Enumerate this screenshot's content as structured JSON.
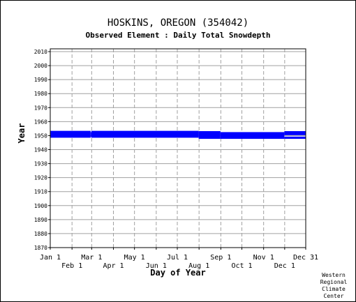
{
  "chart_data": {
    "type": "bar",
    "title": "HOSKINS, OREGON   (354042)",
    "subtitle": "Observed Element : Daily Total Snowdepth",
    "xlabel": "Day of Year",
    "ylabel": "Year",
    "credit": [
      "Western",
      "Regional",
      "Climate",
      "Center"
    ],
    "ylim": [
      1870,
      2012
    ],
    "yticks": [
      1870,
      1880,
      1890,
      1900,
      1910,
      1920,
      1930,
      1940,
      1950,
      1960,
      1970,
      1980,
      1990,
      2000,
      2010
    ],
    "xlim": [
      1,
      365
    ],
    "xticks_upper": [
      {
        "label": "Jan 1",
        "day": 1
      },
      {
        "label": "Mar 1",
        "day": 60
      },
      {
        "label": "May 1",
        "day": 121
      },
      {
        "label": "Jul 1",
        "day": 182
      },
      {
        "label": "Sep 1",
        "day": 244
      },
      {
        "label": "Nov 1",
        "day": 305
      },
      {
        "label": "Dec 31",
        "day": 365
      }
    ],
    "xticks_lower": [
      {
        "label": "Feb 1",
        "day": 32
      },
      {
        "label": "Apr 1",
        "day": 91
      },
      {
        "label": "Jun 1",
        "day": 152
      },
      {
        "label": "Aug 1",
        "day": 213
      },
      {
        "label": "Oct 1",
        "day": 274
      },
      {
        "label": "Dec 1",
        "day": 335
      }
    ],
    "grid": true,
    "bar_color": "#0000ff",
    "data_coverage": [
      {
        "start_day": 1,
        "end_day": 58,
        "year_from": 1948.5,
        "year_to": 1953.4
      },
      {
        "start_day": 59,
        "end_day": 59,
        "year_from": 1949,
        "year_to": 1952.5
      },
      {
        "start_day": 60,
        "end_day": 212,
        "year_from": 1948.5,
        "year_to": 1953.4
      },
      {
        "start_day": 213,
        "end_day": 243,
        "year_from": 1947.7,
        "year_to": 1953.2
      },
      {
        "start_day": 244,
        "end_day": 334,
        "year_from": 1947.7,
        "year_to": 1952.5
      },
      {
        "start_day": 335,
        "end_day": 365,
        "year_from": 1947.7,
        "year_to": 1949.3
      },
      {
        "start_day": 335,
        "end_day": 365,
        "year_from": 1950.3,
        "year_to": 1953.2
      }
    ]
  }
}
